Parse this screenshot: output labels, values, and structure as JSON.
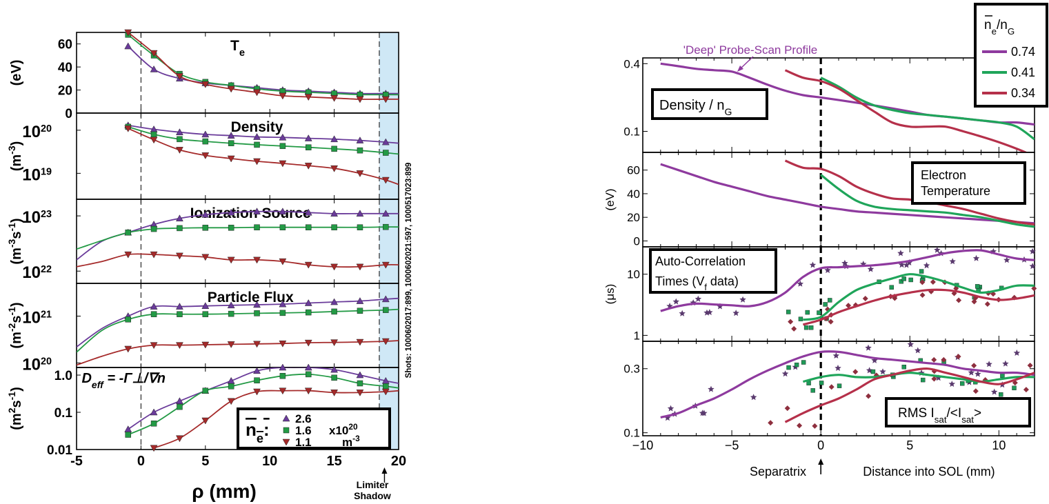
{
  "chart_data": [
    {
      "type": "line",
      "panel_group": "left",
      "x": [
        -5,
        -3,
        -1,
        1,
        3,
        5,
        7,
        9,
        11,
        13,
        15,
        17,
        19,
        20
      ],
      "xlabel": "ρ (mm)",
      "xlim": [
        -5,
        20
      ],
      "xticks": [
        "-5",
        "0",
        "5",
        "10",
        "15",
        "20"
      ],
      "markers_x": [
        -1,
        1,
        3,
        5,
        7,
        9,
        11,
        13,
        15,
        17,
        19
      ],
      "legend": {
        "symbol": "n̄e:",
        "entries": [
          "2.6",
          "1.6",
          "1.1"
        ],
        "unit_top": "x10",
        "unit_top_sup": "20",
        "unit_bottom": "m",
        "unit_bottom_sup": "-3"
      },
      "colors": {
        "high": "#6a3b9a",
        "mid": "#239a45",
        "low": "#a52a2a"
      },
      "side_note": "Shots: 1000602017:899, 1000602021:597, 1000517023:899",
      "annotation": {
        "line1": "Limiter",
        "line2": "Shadow"
      },
      "panels": [
        {
          "title": "T",
          "title_sub": "e",
          "ylabel": "(eV)",
          "yscale": "linear",
          "ylim": [
            0,
            70
          ],
          "yticks": [
            "0",
            "20",
            "40",
            "60"
          ],
          "series": [
            {
              "key": "high",
              "values": [
                null,
                null,
                58,
                38,
                30,
                26,
                24,
                22,
                20,
                19,
                18,
                17,
                17,
                17
              ]
            },
            {
              "key": "mid",
              "values": [
                null,
                null,
                68,
                50,
                34,
                27,
                24,
                21,
                19,
                18,
                17,
                16,
                16,
                16
              ]
            },
            {
              "key": "low",
              "values": [
                null,
                null,
                70,
                52,
                32,
                25,
                21,
                18,
                15,
                14,
                13,
                12,
                12,
                12
              ]
            }
          ]
        },
        {
          "title": "Density",
          "ylabel": "(m⁻³)",
          "yscale": "log",
          "ylim": [
            2.5e+18,
            2.5e+20
          ],
          "yticks": [
            "10²⁰",
            "10¹⁹"
          ],
          "series": [
            {
              "key": "high",
              "values": [
                null,
                null,
                1.3e+20,
                1.05e+20,
                9e+19,
                8e+19,
                7.5e+19,
                7e+19,
                6.8e+19,
                6.5e+19,
                6.2e+19,
                5.8e+19,
                5.3e+19,
                5e+19
              ]
            },
            {
              "key": "mid",
              "values": [
                null,
                null,
                1.2e+20,
                8e+19,
                6.2e+19,
                5.5e+19,
                5e+19,
                4.6e+19,
                4.3e+19,
                4e+19,
                3.7e+19,
                3.4e+19,
                3e+19,
                2.8e+19
              ]
            },
            {
              "key": "low",
              "values": [
                null,
                null,
                1.1e+20,
                6e+19,
                3.5e+19,
                2.6e+19,
                2.2e+19,
                1.9e+19,
                1.7e+19,
                1.5e+19,
                1.3e+19,
                1e+19,
                7e+18,
                5.5e+18
              ]
            }
          ]
        },
        {
          "title": "Ionization Source",
          "ylabel": "(m⁻³s⁻¹)",
          "yscale": "log",
          "ylim": [
            6e+21,
            2e+23
          ],
          "yticks": [
            "10²³",
            "10²²"
          ],
          "series": [
            {
              "key": "high",
              "values": [
                1.6e+22,
                3.5e+22,
                5e+22,
                7e+22,
                9e+22,
                1.05e+23,
                1.15e+23,
                1.2e+23,
                1.2e+23,
                1.15e+23,
                1.1e+23,
                1.1e+23,
                1.1e+23,
                1.1e+23
              ]
            },
            {
              "key": "mid",
              "values": [
                2.5e+22,
                3.6e+22,
                5e+22,
                5.8e+22,
                6e+22,
                6.1e+22,
                6.1e+22,
                6.2e+22,
                6.2e+22,
                6.2e+22,
                6.2e+22,
                6.2e+22,
                6.3e+22,
                6.3e+22
              ]
            },
            {
              "key": "low",
              "values": [
                1.2e+22,
                1.5e+22,
                2e+22,
                2e+22,
                1.9e+22,
                1.8e+22,
                1.6e+22,
                1.6e+22,
                1.5e+22,
                1.3e+22,
                1.2e+22,
                1.2e+22,
                1.3e+22,
                1.3e+22
              ]
            }
          ]
        },
        {
          "title": "Particle Flux",
          "ylabel": "(m⁻²s⁻¹)",
          "yscale": "log",
          "ylim": [
            8e+19,
            5e+21
          ],
          "yticks": [
            "10²¹",
            "10²⁰"
          ],
          "series": [
            {
              "key": "high",
              "values": [
                2.2e+20,
                5.5e+20,
                1e+21,
                1.6e+21,
                1.6e+21,
                1.65e+21,
                1.7e+21,
                1.75e+21,
                1.8e+21,
                1.9e+21,
                2e+21,
                2.1e+21,
                2.3e+21,
                2.4e+21
              ]
            },
            {
              "key": "mid",
              "values": [
                1.7e+20,
                5e+20,
                8.5e+20,
                1.1e+21,
                1.1e+21,
                1.1e+21,
                1.12e+21,
                1.15e+21,
                1.17e+21,
                1.2e+21,
                1.25e+21,
                1.3e+21,
                1.35e+21,
                1.4e+21
              ]
            },
            {
              "key": "low",
              "values": [
                9e+19,
                1.4e+20,
                2e+20,
                2.4e+20,
                2.4e+20,
                2.45e+20,
                2.5e+20,
                2.55e+20,
                2.6e+20,
                2.7e+20,
                2.75e+20,
                2.8e+20,
                2.9e+20,
                3e+20
              ]
            }
          ]
        },
        {
          "title": "D",
          "title_sub": "eff",
          "title_rest": " = -Γ⊥/∇n",
          "ylabel": "(m²s⁻¹)",
          "yscale": "log",
          "ylim": [
            0.01,
            1.6
          ],
          "yticks": [
            "1.0",
            "0.1",
            "0.01"
          ],
          "series": [
            {
              "key": "high",
              "values": [
                null,
                null,
                0.035,
                0.1,
                0.2,
                0.38,
                0.7,
                1.3,
                1.6,
                1.6,
                1.4,
                1.0,
                0.7,
                0.6
              ]
            },
            {
              "key": "mid",
              "values": [
                null,
                null,
                0.025,
                0.05,
                0.14,
                0.38,
                0.5,
                0.72,
                0.95,
                1.05,
                0.85,
                0.6,
                0.5,
                0.45
              ]
            },
            {
              "key": "low",
              "values": [
                null,
                null,
                null,
                0.011,
                0.02,
                0.06,
                0.2,
                0.36,
                0.38,
                0.38,
                0.34,
                0.34,
                0.36,
                0.38
              ]
            }
          ]
        }
      ]
    },
    {
      "type": "line",
      "panel_group": "right",
      "x": [
        -9,
        -8,
        -7,
        -6,
        -5,
        -4,
        -3,
        -2,
        -1,
        0,
        1,
        2,
        3,
        4,
        5,
        6,
        7,
        8,
        9,
        10,
        11,
        12
      ],
      "xlim": [
        -10,
        12
      ],
      "xticks": [
        "−10",
        "−5",
        "0",
        "5",
        "10"
      ],
      "xlabel": "Distance into SOL (mm)",
      "separatrix_label": "Separatrix",
      "top_annotation": "'Deep' Probe-Scan Profile",
      "legend": {
        "title": "n̄e/nG",
        "title_base": "n",
        "title_sub1": "e",
        "title_sub2": "G",
        "entries": [
          "0.74",
          "0.41",
          "0.34"
        ]
      },
      "colors": {
        "a": "#8e3a9e",
        "b": "#1fa55a",
        "c": "#b5304a"
      },
      "panels": [
        {
          "label": "Density /  n",
          "label_sub": "G",
          "yscale": "log",
          "ylim": [
            0.065,
            0.45
          ],
          "yticks": [
            "0.4",
            "0.1"
          ],
          "series": [
            {
              "key": "a",
              "values": [
                0.4,
                0.38,
                0.36,
                0.35,
                0.34,
                0.3,
                0.26,
                0.23,
                0.21,
                0.2,
                0.19,
                0.18,
                0.17,
                0.16,
                0.15,
                0.14,
                0.135,
                0.13,
                0.125,
                0.12,
                0.12,
                0.115
              ]
            },
            {
              "key": "b",
              "values": [
                null,
                null,
                null,
                null,
                null,
                null,
                null,
                null,
                null,
                0.3,
                0.25,
                0.2,
                0.17,
                0.155,
                0.145,
                0.14,
                0.135,
                0.13,
                0.125,
                0.12,
                0.11,
                0.085
              ]
            },
            {
              "key": "c",
              "values": [
                null,
                null,
                null,
                null,
                null,
                null,
                null,
                0.35,
                0.3,
                0.28,
                0.24,
                0.19,
                0.15,
                0.12,
                0.11,
                0.11,
                0.11,
                0.1,
                0.09,
                0.08,
                0.07,
                0.06
              ]
            }
          ]
        },
        {
          "label": "Electron",
          "label2": "Temperature",
          "ylabel": "(eV)",
          "yscale": "linear",
          "ylim": [
            -5,
            75
          ],
          "yticks": [
            "0",
            "20",
            "40",
            "60"
          ],
          "series": [
            {
              "key": "a",
              "values": [
                65,
                60,
                55,
                50,
                46,
                42,
                38,
                35,
                32,
                29,
                27,
                25,
                24,
                23,
                22,
                21,
                20,
                19,
                18,
                17,
                16,
                15
              ]
            },
            {
              "key": "b",
              "values": [
                null,
                null,
                null,
                null,
                null,
                null,
                null,
                null,
                null,
                56,
                44,
                34,
                29,
                27,
                26,
                25,
                24,
                22,
                20,
                17,
                14,
                12
              ]
            },
            {
              "key": "c",
              "values": [
                null,
                null,
                null,
                null,
                null,
                null,
                null,
                68,
                62,
                61,
                55,
                46,
                40,
                36,
                35,
                33,
                30,
                27,
                23,
                19,
                16,
                14
              ]
            }
          ]
        },
        {
          "label": "Auto-Correlation",
          "label2": "Times (V",
          "label2_sub": "f",
          "label2_rest": " data)",
          "ylabel": "(μs)",
          "yscale": "log",
          "ylim": [
            0.8,
            28
          ],
          "yticks": [
            "10",
            "1"
          ],
          "series": [
            {
              "key": "a",
              "values": [
                2.5,
                3.0,
                3.3,
                3.2,
                3.1,
                3.0,
                3.5,
                5.0,
                9.0,
                12.5,
                13.0,
                13.5,
                14.0,
                15.0,
                16.5,
                19.0,
                22.0,
                24.0,
                24.5,
                21.0,
                18.0,
                17.0
              ]
            },
            {
              "key": "b",
              "values": [
                null,
                null,
                null,
                null,
                null,
                null,
                null,
                null,
                1.8,
                2.0,
                3.5,
                5.5,
                7.0,
                8.5,
                10.0,
                9.0,
                7.5,
                6.0,
                5.0,
                5.5,
                6.5,
                6.5
              ]
            },
            {
              "key": "c",
              "values": [
                null,
                null,
                null,
                null,
                null,
                null,
                null,
                null,
                1.5,
                1.8,
                2.4,
                3.0,
                3.7,
                4.4,
                5.0,
                5.5,
                5.5,
                5.0,
                4.2,
                3.8,
                4.0,
                4.5
              ]
            }
          ]
        },
        {
          "label": "RMS I",
          "label_sub": "sat",
          "label_rest": "/<I",
          "label_sub2": "sat",
          "label_rest2": ">",
          "yscale": "log",
          "ylim": [
            0.095,
            0.48
          ],
          "yticks": [
            "0.3",
            "0.1"
          ],
          "series": [
            {
              "key": "a",
              "values": [
                0.13,
                0.14,
                0.16,
                0.18,
                0.21,
                0.25,
                0.29,
                0.33,
                0.37,
                0.4,
                0.4,
                0.38,
                0.36,
                0.35,
                0.34,
                0.33,
                0.32,
                0.3,
                0.29,
                0.28,
                0.28,
                0.27
              ]
            },
            {
              "key": "b",
              "values": [
                null,
                null,
                null,
                null,
                null,
                null,
                null,
                null,
                0.24,
                0.26,
                0.27,
                0.26,
                0.26,
                0.27,
                0.28,
                0.27,
                0.26,
                0.25,
                0.24,
                0.25,
                0.26,
                0.26
              ]
            },
            {
              "key": "c",
              "values": [
                null,
                null,
                null,
                null,
                null,
                null,
                null,
                0.12,
                0.14,
                0.16,
                0.18,
                0.21,
                0.25,
                0.27,
                0.29,
                0.3,
                0.28,
                0.26,
                0.24,
                0.23,
                0.25,
                0.28
              ]
            }
          ]
        }
      ]
    }
  ]
}
